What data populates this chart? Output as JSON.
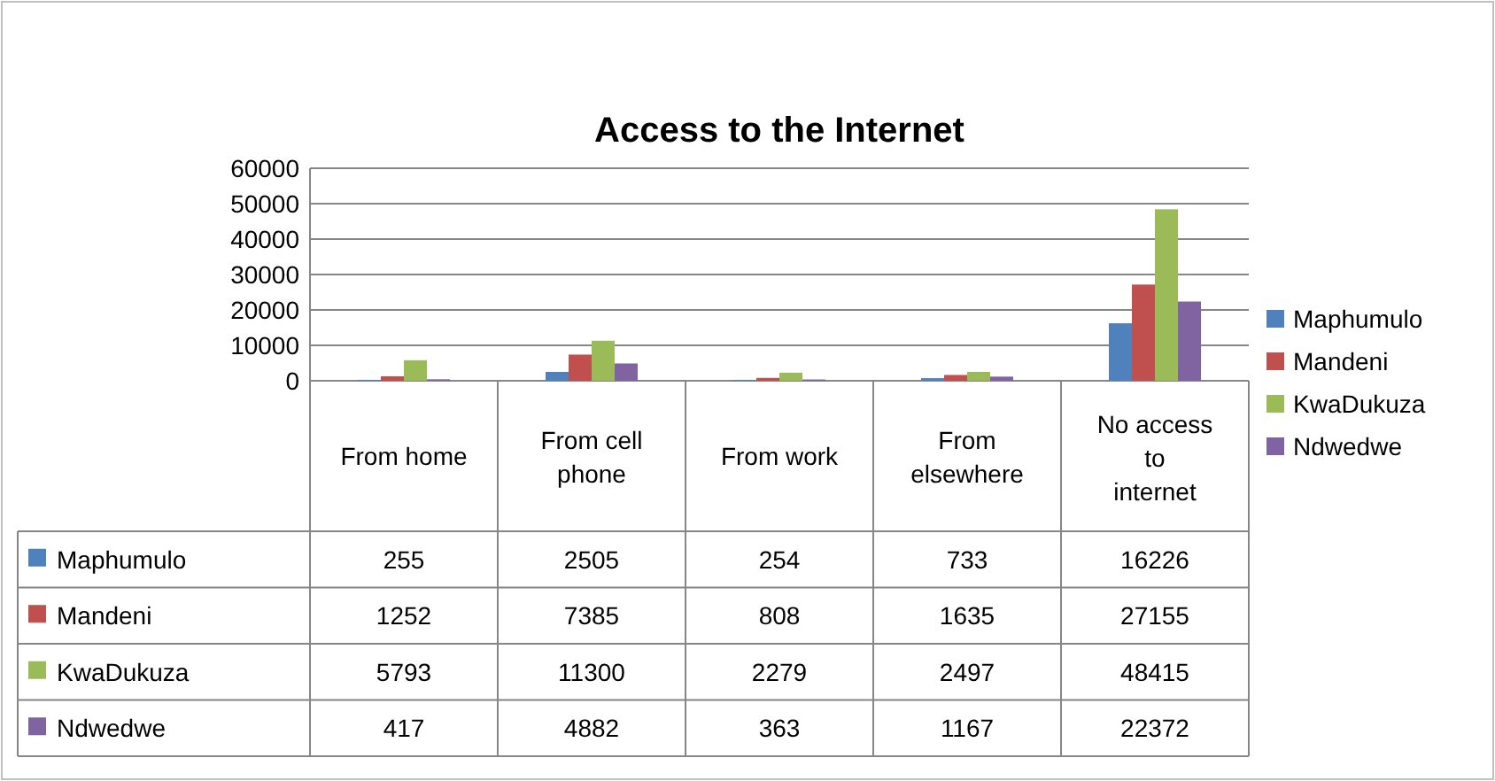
{
  "chart_data": {
    "type": "bar",
    "title": "Access to the Internet",
    "categories": [
      "From home",
      "From cell phone",
      "From work",
      "From elsewhere",
      "No access to internet"
    ],
    "series": [
      {
        "name": "Maphumulo",
        "color": "#4f81bd",
        "values": [
          255,
          2505,
          254,
          733,
          16226
        ]
      },
      {
        "name": "Mandeni",
        "color": "#c0504d",
        "values": [
          1252,
          7385,
          808,
          1635,
          27155
        ]
      },
      {
        "name": "KwaDukuza",
        "color": "#9bbb59",
        "values": [
          5793,
          11300,
          2279,
          2497,
          48415
        ]
      },
      {
        "name": "Ndwedwe",
        "color": "#8064a2",
        "values": [
          417,
          4882,
          363,
          1167,
          22372
        ]
      }
    ],
    "ylim": [
      0,
      60000
    ],
    "yticks": [
      0,
      10000,
      20000,
      30000,
      40000,
      50000,
      60000
    ],
    "grid": "y",
    "legend": "right",
    "data_labels": true
  }
}
